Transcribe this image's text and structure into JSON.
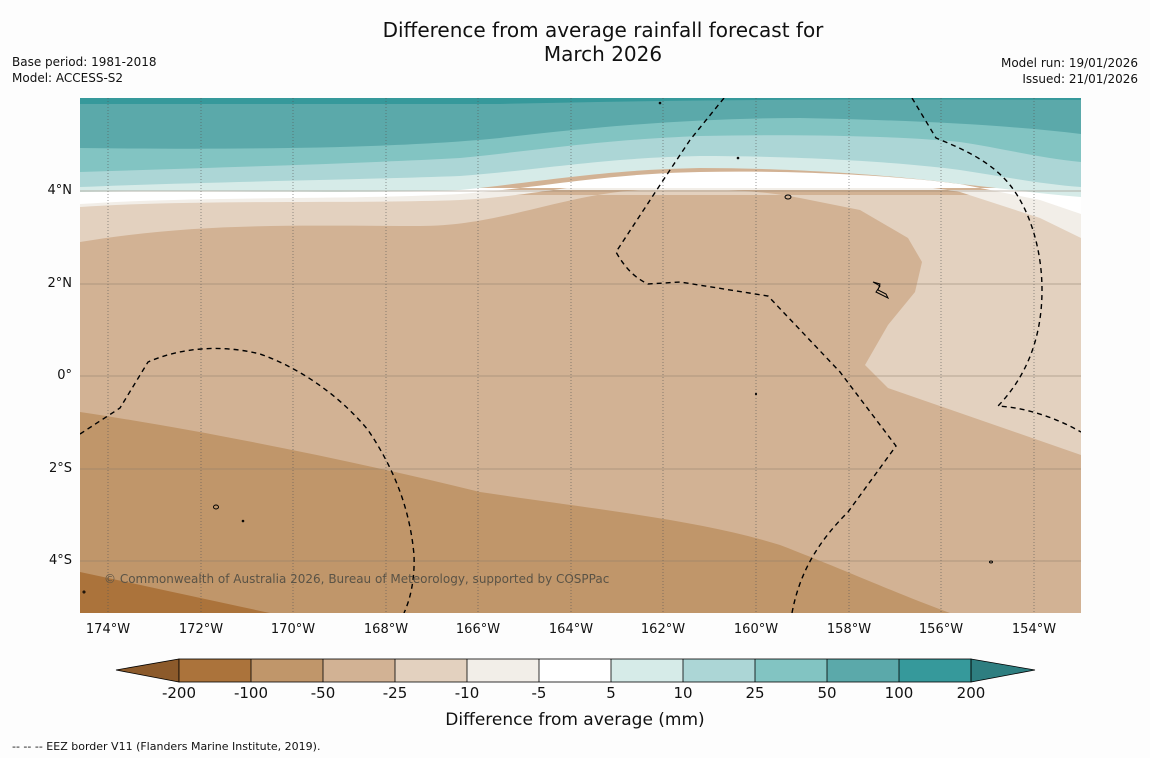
{
  "title": {
    "line1": "Difference from average rainfall forecast for",
    "line2": "March 2026"
  },
  "meta_left": {
    "base_period": "Base period: 1981-2018",
    "model": "Model: ACCESS-S2"
  },
  "meta_right": {
    "model_run": "Model run: 19/01/2026",
    "issued": "Issued: 21/01/2026"
  },
  "copyright": "© Commonwealth of Australia 2026, Bureau of Meteorology, supported by COSPPac",
  "map": {
    "lon_range": [
      -174.6,
      -152.9
    ],
    "lat_range": [
      -5.1,
      6.0
    ],
    "lat_labels": [
      "4°N",
      "2°N",
      "0°",
      "2°S",
      "4°S"
    ],
    "lon_labels": [
      "174°W",
      "172°W",
      "170°W",
      "168°W",
      "166°W",
      "164°W",
      "162°W",
      "160°W",
      "158°W",
      "156°W",
      "154°W"
    ]
  },
  "colorbar": {
    "title": "Difference from average (mm)",
    "ticks": [
      "-200",
      "-100",
      "-50",
      "-25",
      "-10",
      "-5",
      "5",
      "10",
      "25",
      "50",
      "100",
      "200"
    ],
    "colors": [
      "#ab733b",
      "#c0966a",
      "#d2b294",
      "#e3d1bf",
      "#f2eee8",
      "#ffffff",
      "#d6ebe8",
      "#acd6d6",
      "#82c4c2",
      "#5ba9aa",
      "#36999b",
      "#2e7e80"
    ]
  },
  "footer": "--  --  -- EEZ border V11 (Flanders Marine Institute, 2019)."
}
